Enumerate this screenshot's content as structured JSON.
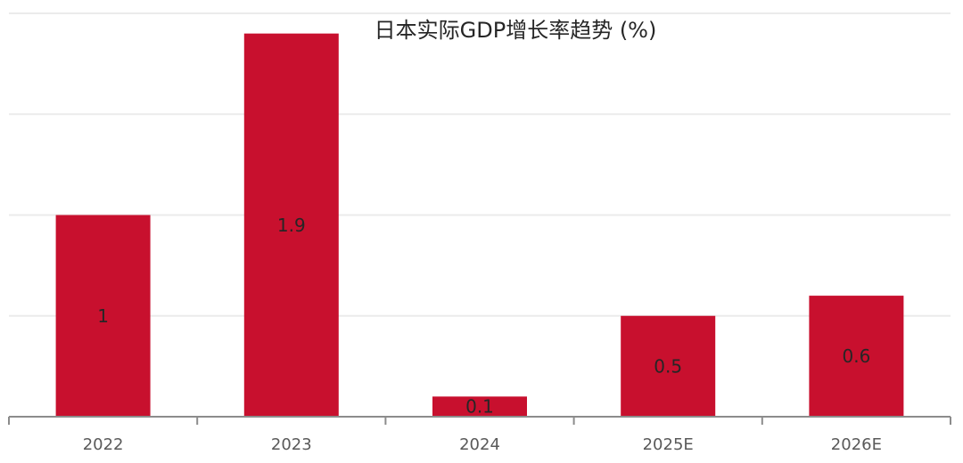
{
  "chart_data": {
    "type": "bar",
    "title": "日本实际GDP增长率趋势 (%)",
    "categories": [
      "2022",
      "2023",
      "2024",
      "2025E",
      "2026E"
    ],
    "values": [
      1,
      1.9,
      0.1,
      0.5,
      0.6
    ],
    "data_labels": [
      "1",
      "1.9",
      "0.1",
      "0.5",
      "0.6"
    ],
    "xlabel": "",
    "ylabel": "",
    "ylim": [
      0,
      2
    ],
    "grid": true,
    "legend": "none",
    "bar_color": "#C8102E",
    "gridline_color": "#ebebeb",
    "axis_color": "#8c8c8c"
  }
}
